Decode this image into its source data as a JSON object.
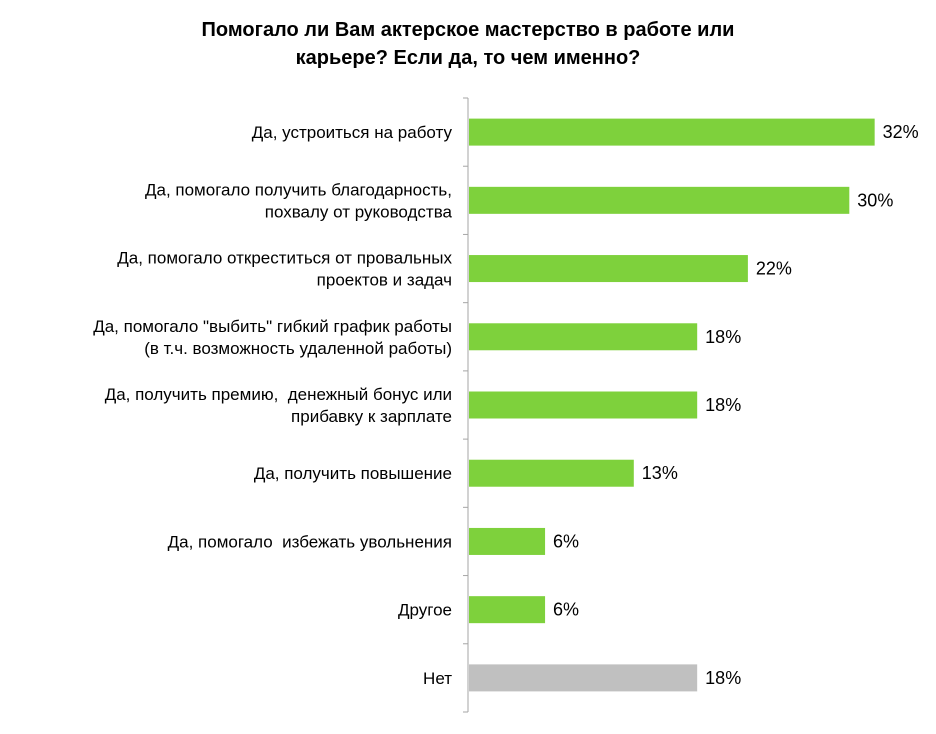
{
  "chart_data": {
    "type": "bar",
    "orientation": "horizontal",
    "title_lines": [
      "Помогало ли Вам актерское мастерство в работе или",
      "карьере? Если да, то чем именно?"
    ],
    "categories": [
      [
        "Да, устроиться на работу"
      ],
      [
        "Да, помогало получить благодарность,",
        "похвалу от руководства"
      ],
      [
        "Да, помогало откреститься от провальных",
        "проектов и задач"
      ],
      [
        "Да, помогало \"выбить\" гибкий график работы",
        "(в т.ч. возможность удаленной работы)"
      ],
      [
        "Да, получить премию,  денежный бонус или",
        "прибавку к зарплате"
      ],
      [
        "Да, получить повышение"
      ],
      [
        "Да, помогало  избежать увольнения"
      ],
      [
        "Другое"
      ],
      [
        "Нет"
      ]
    ],
    "values": [
      32,
      30,
      22,
      18,
      18,
      13,
      6,
      6,
      18
    ],
    "value_labels": [
      "32%",
      "30%",
      "22%",
      "18%",
      "18%",
      "13%",
      "6%",
      "6%",
      "18%"
    ],
    "bar_colors": [
      "#7ed13c",
      "#7ed13c",
      "#7ed13c",
      "#7ed13c",
      "#7ed13c",
      "#7ed13c",
      "#7ed13c",
      "#7ed13c",
      "#c0c0c0"
    ],
    "xlim": [
      0,
      32.5
    ],
    "grid": false,
    "legend": "none"
  }
}
